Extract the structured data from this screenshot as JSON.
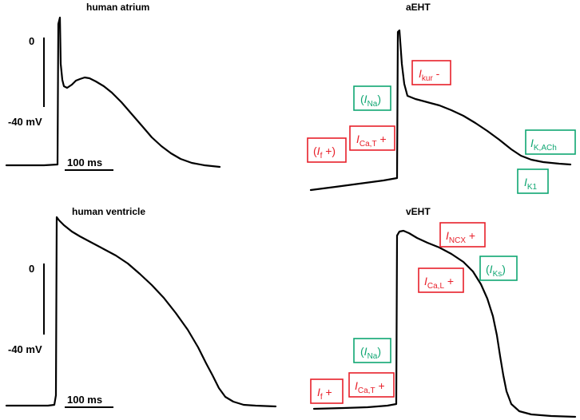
{
  "panels": {
    "atrium": {
      "title": "human atrium",
      "zero_label": "0",
      "mv_label": "-40 mV",
      "scale_label": "100 ms"
    },
    "aeht": {
      "title": "aEHT"
    },
    "ventricle": {
      "title": "human ventricle",
      "zero_label": "0",
      "mv_label": "-40 mV",
      "scale_label": "100 ms"
    },
    "veht": {
      "title": "vEHT"
    }
  },
  "currents": {
    "aeht": [
      {
        "id": "ikur",
        "open": "",
        "sym": "I",
        "sub": "kur",
        "close": " -",
        "color": "red"
      },
      {
        "id": "ina",
        "open": "(",
        "sym": "I",
        "sub": "Na",
        "close": ")",
        "color": "green"
      },
      {
        "id": "ical-t",
        "open": "",
        "sym": "I",
        "sub": "Ca,T",
        "close": " +",
        "color": "red"
      },
      {
        "id": "if",
        "open": "(",
        "sym": "I",
        "sub": "f",
        "close": " +)",
        "color": "red"
      },
      {
        "id": "ikach",
        "open": "",
        "sym": "I",
        "sub": "K,ACh",
        "close": "",
        "color": "green"
      },
      {
        "id": "ik1",
        "open": "",
        "sym": "I",
        "sub": "K1",
        "close": "",
        "color": "green"
      }
    ],
    "veht": [
      {
        "id": "incx",
        "open": "",
        "sym": "I",
        "sub": "NCX",
        "close": " +",
        "color": "red"
      },
      {
        "id": "iks",
        "open": "(",
        "sym": "I",
        "sub": "Ks",
        "close": ")",
        "color": "green"
      },
      {
        "id": "ical-l",
        "open": "",
        "sym": "I",
        "sub": "Ca,L",
        "close": " +",
        "color": "red"
      },
      {
        "id": "ina",
        "open": "(",
        "sym": "I",
        "sub": "Na",
        "close": ")",
        "color": "green"
      },
      {
        "id": "if",
        "open": "",
        "sym": "I",
        "sub": "f",
        "close": " +",
        "color": "red"
      },
      {
        "id": "ical-t",
        "open": "",
        "sym": "I",
        "sub": "Ca,T",
        "close": " +",
        "color": "red"
      }
    ]
  },
  "colors": {
    "red": "#e8202a",
    "green": "#0fa672",
    "trace": "#000000"
  }
}
